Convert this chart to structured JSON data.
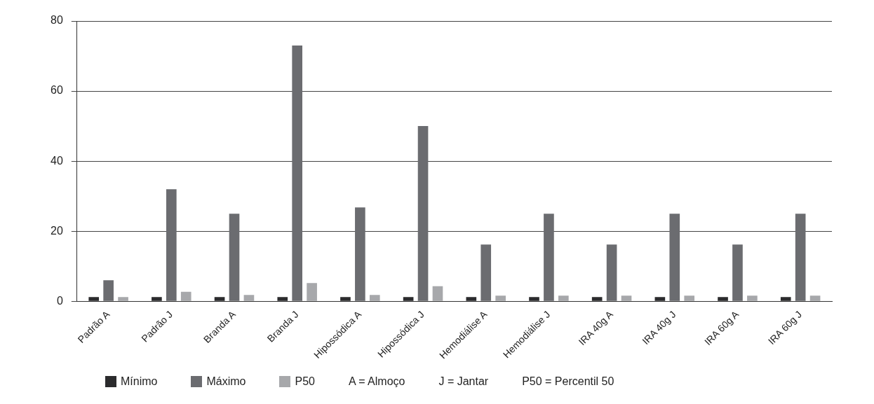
{
  "chart_data": {
    "type": "bar",
    "categories": [
      "Padrão A",
      "Padrão J",
      "Branda A",
      "Branda J",
      "Hipossódica A",
      "Hipossódica J",
      "Hemodiálise A",
      "Hemodiálise J",
      "IRA 40g A",
      "IRA 40g J",
      "IRA 60g A",
      "IRA 60g J"
    ],
    "series": [
      {
        "name": "Mínimo",
        "color": "#2b2b2d",
        "values": [
          1.2,
          1.2,
          1.2,
          1.2,
          1.2,
          1.2,
          1.2,
          1.2,
          1.2,
          1.2,
          1.2,
          1.2
        ]
      },
      {
        "name": "Máximo",
        "color": "#6b6c70",
        "values": [
          6,
          32,
          25,
          73,
          26.8,
          50,
          16.2,
          25,
          16.2,
          25,
          16.2,
          25
        ]
      },
      {
        "name": "P50",
        "color": "#a7a8ab",
        "values": [
          1.2,
          2.7,
          1.8,
          5.2,
          1.8,
          4.3,
          1.6,
          1.6,
          1.6,
          1.6,
          1.6,
          1.6
        ]
      }
    ],
    "ylim": [
      0,
      80
    ],
    "yticks": [
      0,
      20,
      40,
      60,
      80
    ],
    "grid": "y",
    "legend": "bottom",
    "annotations": [
      "A = Almoço",
      "J = Jantar",
      "P50 = Percentil 50"
    ]
  }
}
